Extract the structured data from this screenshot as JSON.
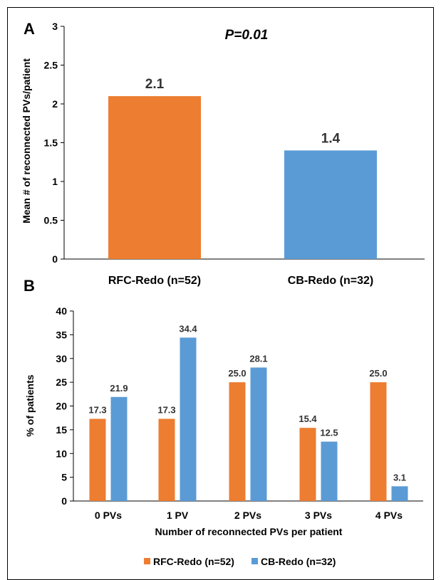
{
  "colors": {
    "rfc": "#ed7d31",
    "cb": "#5b9bd5"
  },
  "chart_data": [
    {
      "type": "bar",
      "panel": "A",
      "annotation": "P=0.01",
      "categories": [
        "RFC-Redo (n=52)",
        "CB-Redo (n=32)"
      ],
      "values": [
        2.1,
        1.4
      ],
      "data_labels": [
        "2.1",
        "1.4"
      ],
      "ylabel": "Mean # of reconnected PVs/patient",
      "ylim": [
        0,
        3
      ],
      "yticks": [
        0,
        0.5,
        1,
        1.5,
        2,
        2.5,
        3
      ],
      "ytick_labels": [
        "0",
        "0.5",
        "1",
        "1.5",
        "2",
        "2.5",
        "3"
      ],
      "grid": false
    },
    {
      "type": "bar",
      "panel": "B",
      "categories": [
        "0 PVs",
        "1 PV",
        "2 PVs",
        "3 PVs",
        "4 PVs"
      ],
      "series": [
        {
          "name": "RFC-Redo (n=52)",
          "values": [
            17.3,
            17.3,
            25.0,
            15.4,
            25.0
          ],
          "labels": [
            "17.3",
            "17.3",
            "25.0",
            "15.4",
            "25.0"
          ]
        },
        {
          "name": "CB-Redo (n=32)",
          "values": [
            21.9,
            34.4,
            28.1,
            12.5,
            3.1
          ],
          "labels": [
            "21.9",
            "34.4",
            "28.1",
            "12.5",
            "3.1"
          ]
        }
      ],
      "xlabel": "Number of reconnected PVs per patient",
      "ylabel": "% of patients",
      "ylim": [
        0,
        40
      ],
      "yticks": [
        0,
        5,
        10,
        15,
        20,
        25,
        30,
        35,
        40
      ],
      "ytick_labels": [
        "0",
        "5",
        "10",
        "15",
        "20",
        "25",
        "30",
        "35",
        "40"
      ],
      "legend": "bottom",
      "grid": false
    }
  ]
}
